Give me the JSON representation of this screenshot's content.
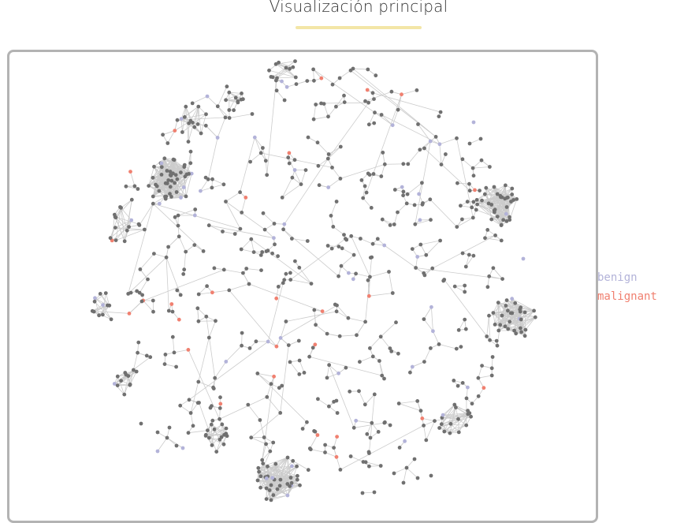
{
  "title": "Visualización principal",
  "legend": [
    {
      "label": "benign",
      "color": "#b3b3d9"
    },
    {
      "label": "malignant",
      "color": "#f08070"
    }
  ],
  "colors": {
    "node": "#707070",
    "edge": "#cccccc",
    "underline": "#f3e6a7",
    "frame": "#b3b3b3"
  }
}
